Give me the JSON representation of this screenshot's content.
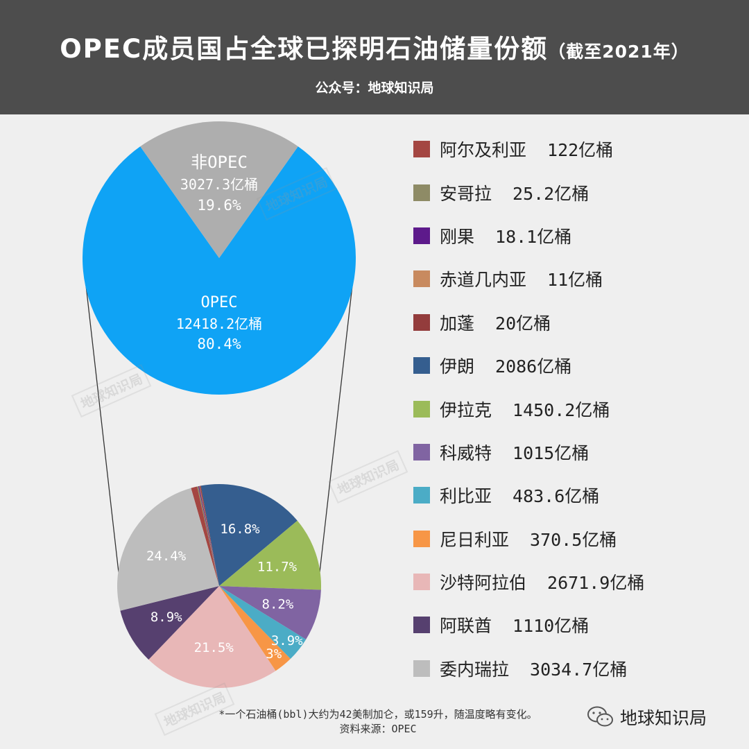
{
  "header": {
    "title": "OPEC成员国占全球已探明石油储量份额",
    "title_note": "（截至2021年）",
    "credit": "公众号：地球知识局"
  },
  "chart_data": [
    {
      "type": "pie",
      "title": "",
      "slices": [
        {
          "name": "非OPEC",
          "value": 3027.3,
          "unit": "亿桶",
          "percent": "19.6%",
          "color": "#aeaeae"
        },
        {
          "name": "OPEC",
          "value": 12418.2,
          "unit": "亿桶",
          "percent": "80.4%",
          "color": "#0fa3f5"
        }
      ]
    },
    {
      "type": "pie",
      "title": "",
      "slices": [
        {
          "name": "阿尔及利亚",
          "value": 122,
          "value_label": "122亿桶",
          "percent": "",
          "color": "#a44642"
        },
        {
          "name": "安哥拉",
          "value": 25.2,
          "value_label": "25.2亿桶",
          "percent": "",
          "color": "#8e8b66"
        },
        {
          "name": "刚果",
          "value": 18.1,
          "value_label": "18.1亿桶",
          "percent": "",
          "color": "#5d1a8b"
        },
        {
          "name": "赤道几内亚",
          "value": 11,
          "value_label": "11亿桶",
          "percent": "",
          "color": "#c88a5f"
        },
        {
          "name": "加蓬",
          "value": 20,
          "value_label": "20亿桶",
          "percent": "",
          "color": "#933c3c"
        },
        {
          "name": "伊朗",
          "value": 2086,
          "value_label": "2086亿桶",
          "percent": "16.8%",
          "color": "#355e8f"
        },
        {
          "name": "伊拉克",
          "value": 1450.2,
          "value_label": "1450.2亿桶",
          "percent": "11.7%",
          "color": "#9bbb59"
        },
        {
          "name": "科威特",
          "value": 1015,
          "value_label": "1015亿桶",
          "percent": "8.2%",
          "color": "#8064a2"
        },
        {
          "name": "利比亚",
          "value": 483.6,
          "value_label": "483.6亿桶",
          "percent": "3.9%",
          "color": "#4bacc6"
        },
        {
          "name": "尼日利亚",
          "value": 370.5,
          "value_label": "370.5亿桶",
          "percent": "3%",
          "color": "#f79646"
        },
        {
          "name": "沙特阿拉伯",
          "value": 2671.9,
          "value_label": "2671.9亿桶",
          "percent": "21.5%",
          "color": "#e8b7b7"
        },
        {
          "name": "阿联酋",
          "value": 1110,
          "value_label": "1110亿桶",
          "percent": "8.9%",
          "color": "#56406f"
        },
        {
          "name": "委内瑞拉",
          "value": 3034.7,
          "value_label": "3034.7亿桶",
          "percent": "24.4%",
          "color": "#bdbdbd"
        }
      ]
    }
  ],
  "footnote": {
    "line1": "*一个石油桶(bbl)大约为42美制加仑，或159升，随温度略有变化。",
    "line2": "资料来源：OPEC"
  },
  "brand": {
    "label": "地球知识局",
    "icon": "wechat-icon"
  },
  "watermark": "地球知识局"
}
